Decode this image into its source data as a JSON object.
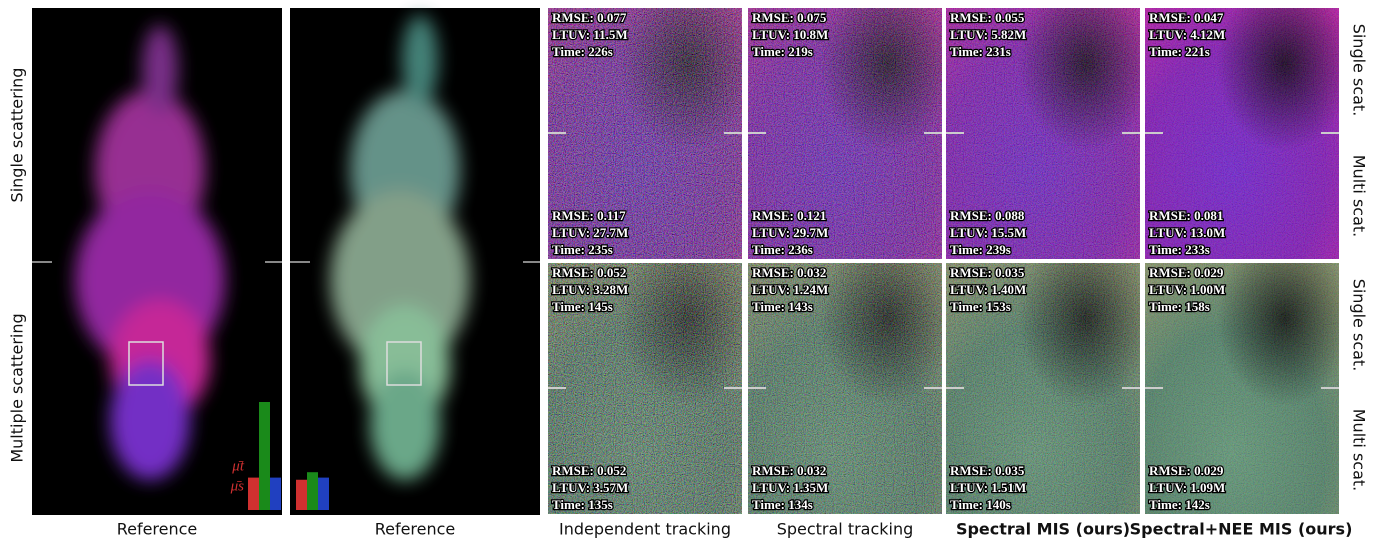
{
  "row_labels": [
    "Single scattering",
    "Multiple scattering"
  ],
  "side_labels": [
    "Single scat.",
    "Multi scat.",
    "Single scat.",
    "Multi scat."
  ],
  "columns": [
    {
      "label": "Reference",
      "bold": false
    },
    {
      "label": "Reference",
      "bold": false
    },
    {
      "label": "Independent tracking",
      "bold": false
    },
    {
      "label": "Spectral tracking",
      "bold": false
    },
    {
      "label": "Spectral MIS (ours)",
      "bold": true
    },
    {
      "label": "Spectral+NEE MIS (ours)",
      "bold": true
    }
  ],
  "bar_labels": [
    "μ̄t",
    "μ̄s"
  ],
  "bars": [
    {
      "colors": [
        "#d03030",
        "#1a8a1a",
        "#2040c0"
      ],
      "values": [
        0.3,
        1.0,
        0.3
      ]
    },
    {
      "colors": [
        "#d03030",
        "#1a8a1a",
        "#2040c0"
      ],
      "values": [
        0.28,
        0.35,
        0.3
      ]
    }
  ],
  "panels": [
    [
      {
        "top": [
          "RMSE: 0.077",
          "LTUV: 11.5M",
          "Time: 226s"
        ],
        "bottom": [
          "RMSE: 0.117",
          "LTUV: 27.7M",
          "Time: 235s"
        ]
      },
      {
        "top": [
          "RMSE: 0.075",
          "LTUV: 10.8M",
          "Time: 219s"
        ],
        "bottom": [
          "RMSE: 0.121",
          "LTUV: 29.7M",
          "Time: 236s"
        ]
      },
      {
        "top": [
          "RMSE: 0.055",
          "LTUV: 5.82M",
          "Time: 231s"
        ],
        "bottom": [
          "RMSE: 0.088",
          "LTUV: 15.5M",
          "Time: 239s"
        ]
      },
      {
        "top": [
          "RMSE: 0.047",
          "LTUV: 4.12M",
          "Time: 221s"
        ],
        "bottom": [
          "RMSE: 0.081",
          "LTUV: 13.0M",
          "Time: 233s"
        ]
      }
    ],
    [
      {
        "top": [
          "RMSE: 0.052",
          "LTUV: 3.28M",
          "Time: 145s"
        ],
        "bottom": [
          "RMSE: 0.052",
          "LTUV: 3.57M",
          "Time: 135s"
        ]
      },
      {
        "top": [
          "RMSE: 0.032",
          "LTUV: 1.24M",
          "Time: 143s"
        ],
        "bottom": [
          "RMSE: 0.032",
          "LTUV: 1.35M",
          "Time: 134s"
        ]
      },
      {
        "top": [
          "RMSE: 0.035",
          "LTUV: 1.40M",
          "Time: 153s"
        ],
        "bottom": [
          "RMSE: 0.035",
          "LTUV: 1.51M",
          "Time: 140s"
        ]
      },
      {
        "top": [
          "RMSE: 0.029",
          "LTUV: 1.00M",
          "Time: 158s"
        ],
        "bottom": [
          "RMSE: 0.029",
          "LTUV: 1.09M",
          "Time: 142s"
        ]
      }
    ]
  ]
}
